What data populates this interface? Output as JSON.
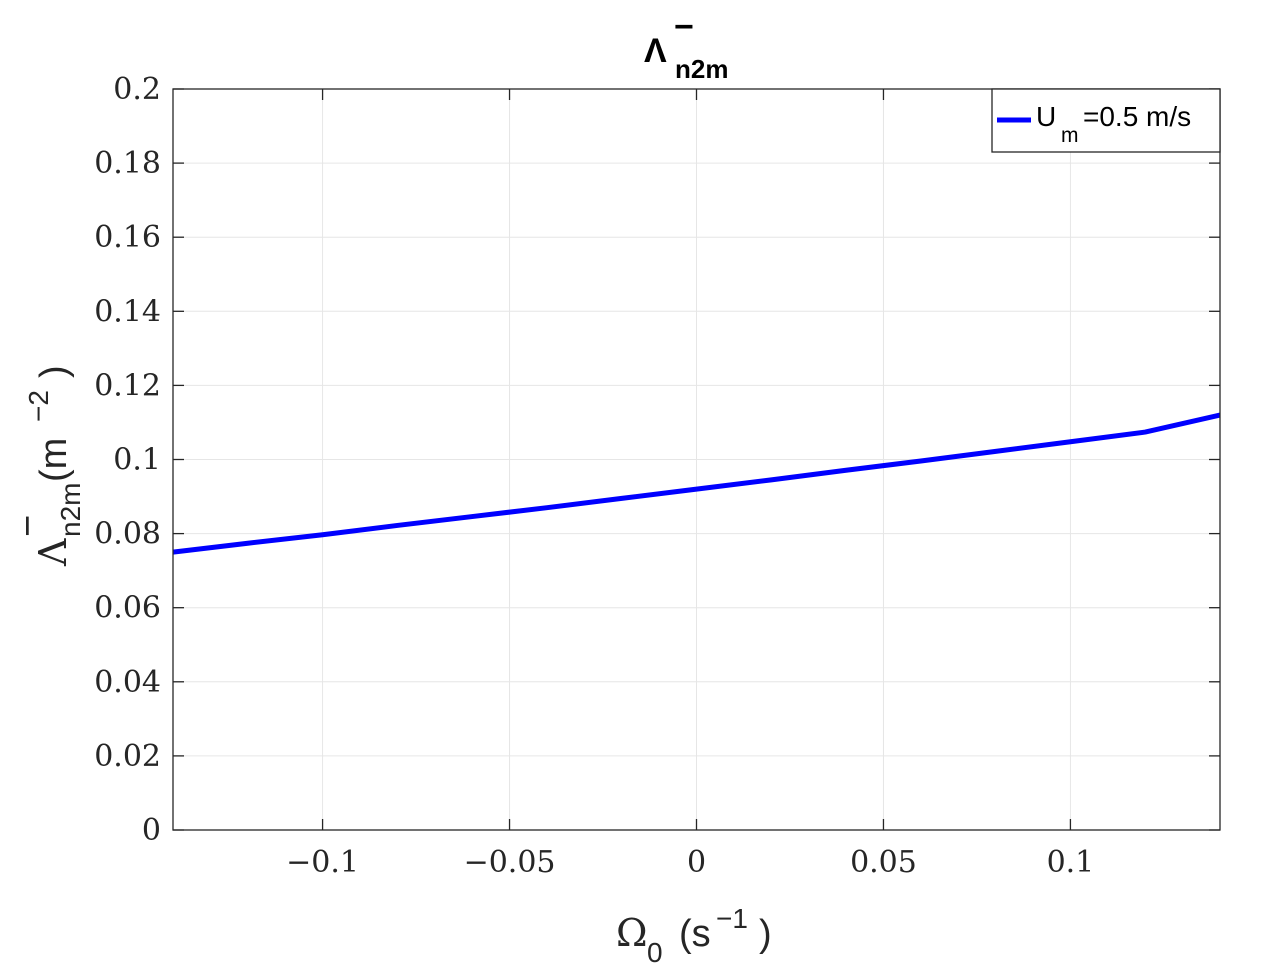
{
  "chart_data": {
    "type": "line",
    "title": {
      "symbol": "Λ",
      "superscript": "−",
      "subscript": "n2m"
    },
    "xlabel": {
      "symbol": "Ω",
      "subscript": "0",
      "unit_open": "(s",
      "unit_superscript": "−1",
      "unit_close": ")"
    },
    "ylabel": {
      "symbol": "Λ",
      "superscript": "−",
      "subscript": "n2m",
      "unit_open": "(m",
      "unit_superscript": "−2",
      "unit_close": ")"
    },
    "xlim": [
      -0.14,
      0.14
    ],
    "ylim": [
      0,
      0.2
    ],
    "x_ticks": [
      -0.1,
      -0.05,
      0,
      0.05,
      0.1
    ],
    "x_tick_labels": [
      "−0.1",
      "−0.05",
      "0",
      "0.05",
      "0.1"
    ],
    "y_ticks": [
      0,
      0.02,
      0.04,
      0.06,
      0.08,
      0.1,
      0.12,
      0.14,
      0.16,
      0.18,
      0.2
    ],
    "y_tick_labels": [
      "0",
      "0.02",
      "0.04",
      "0.06",
      "0.08",
      "0.1",
      "0.12",
      "0.14",
      "0.16",
      "0.18",
      "0.2"
    ],
    "grid": true,
    "legend_position": "top-right",
    "series": [
      {
        "name": {
          "main": "U",
          "subscript": "m",
          "rest": "=0.5 m/s"
        },
        "color": "#0000ff",
        "x": [
          -0.14,
          -0.12,
          -0.1,
          -0.08,
          -0.06,
          -0.04,
          -0.02,
          0,
          0.02,
          0.04,
          0.06,
          0.08,
          0.1,
          0.12,
          0.14
        ],
        "y": [
          0.075,
          0.0774,
          0.0797,
          0.0822,
          0.0846,
          0.087,
          0.0895,
          0.092,
          0.0945,
          0.0971,
          0.0996,
          0.1022,
          0.1048,
          0.1074,
          0.112
        ]
      }
    ]
  }
}
